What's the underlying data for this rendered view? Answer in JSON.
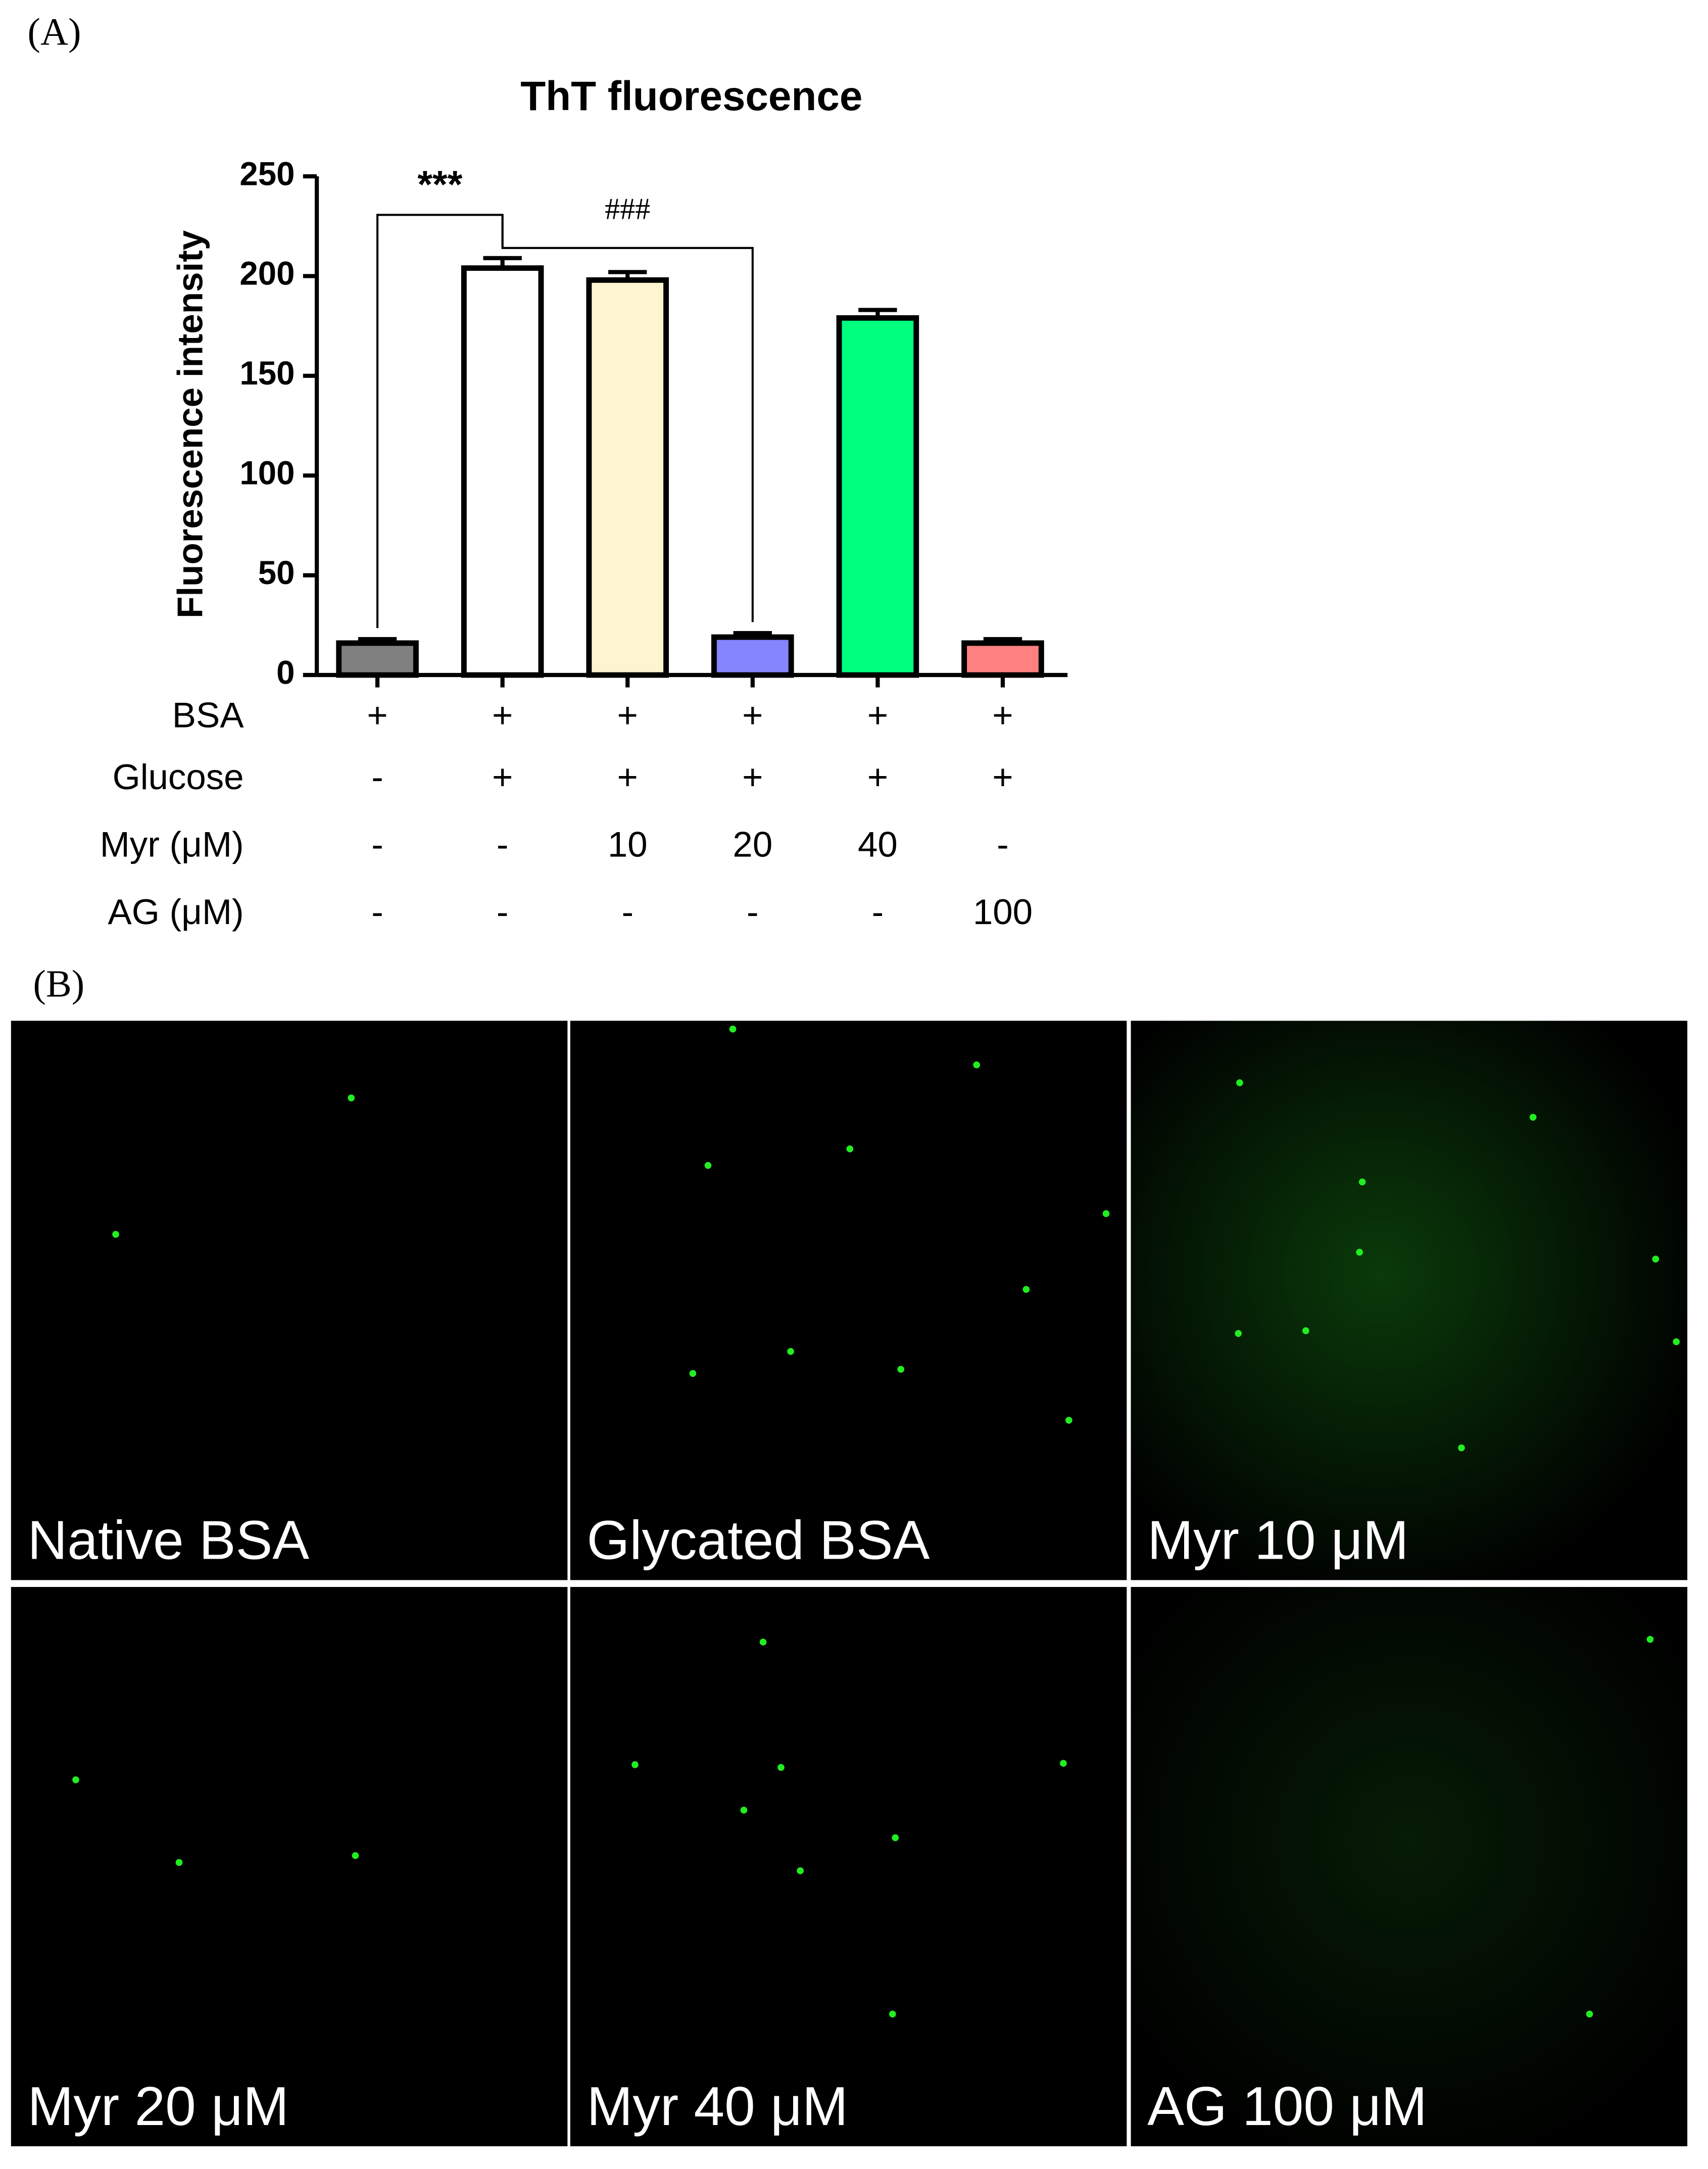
{
  "panel_a_label": "(A)",
  "panel_b_label": "(B)",
  "chart_data": {
    "type": "bar",
    "title": "ThT fluorescence",
    "y_label": "Fluorescence intensity",
    "categories": [
      null,
      null,
      null,
      null,
      null,
      null
    ],
    "values": [
      16,
      204,
      198,
      19,
      179,
      16
    ],
    "errors": [
      2,
      5,
      4,
      2,
      4,
      2
    ],
    "colors": [
      "#808080",
      "#ffffff",
      "#fdf4d2",
      "#8585ff",
      "#00ff7f",
      "#ff8080"
    ],
    "ylim": [
      0,
      250
    ],
    "yticks": [
      0,
      50,
      100,
      150,
      200,
      250
    ],
    "annotations": [
      {
        "text": "***",
        "from": 0,
        "to": 1
      },
      {
        "text": "###",
        "from": 1,
        "to": 3
      }
    ],
    "treatments": [
      {
        "label": "BSA",
        "values": [
          "+",
          "+",
          "+",
          "+",
          "+",
          "+"
        ]
      },
      {
        "label": "Glucose",
        "values": [
          "-",
          "+",
          "+",
          "+",
          "+",
          "+"
        ]
      },
      {
        "label": "Myr (μM)",
        "values": [
          "-",
          "-",
          "10",
          "20",
          "40",
          "-"
        ]
      },
      {
        "label": "AG (μM)",
        "values": [
          "-",
          "-",
          "-",
          "-",
          "-",
          "100"
        ]
      }
    ]
  },
  "images": [
    {
      "caption": "Native BSA"
    },
    {
      "caption": "Glycated BSA"
    },
    {
      "caption": "Myr 10 μM"
    },
    {
      "caption": "Myr 20 μM"
    },
    {
      "caption": "Myr 40 μM"
    },
    {
      "caption": "AG 100 μM"
    }
  ]
}
